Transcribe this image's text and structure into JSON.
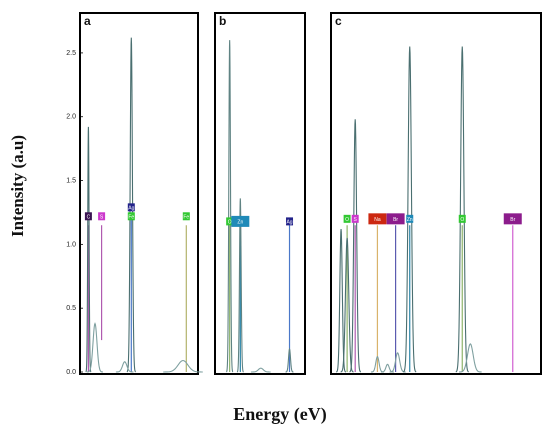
{
  "chart_data": {
    "type": "line",
    "ylabel": "Intensity (a.u)",
    "xlabel": "Energy (eV)",
    "ylim": [
      0,
      2.75
    ],
    "yticks": [
      "0.0",
      "0.5",
      "1.0",
      "1.5",
      "2.0",
      "2.5"
    ],
    "panels": [
      {
        "label": "a",
        "peaks": [
          {
            "x": 0.04,
            "h": 1.92,
            "w": 0.006,
            "color": "#4a6f70"
          },
          {
            "x": 0.1,
            "h": 0.38,
            "w": 0.018,
            "color": "#7fa0a0"
          },
          {
            "x": 0.43,
            "h": 2.62,
            "w": 0.01,
            "color": "#4a6f70"
          },
          {
            "x": 0.37,
            "h": 0.08,
            "w": 0.02,
            "color": "#7fa0a0"
          },
          {
            "x": 0.9,
            "h": 0.09,
            "w": 0.045,
            "color": "#7fa0a0"
          }
        ],
        "markers": [
          {
            "x": 0.04,
            "top": 1.15,
            "bottom": 0.0,
            "color": "#b05bb0"
          },
          {
            "x": 0.16,
            "top": 1.15,
            "bottom": 0.25,
            "color": "#b05bb0"
          },
          {
            "x": 0.43,
            "top": 1.2,
            "bottom": 0.0,
            "color": "#4a78c9"
          },
          {
            "x": 0.93,
            "top": 1.15,
            "bottom": 0.0,
            "color": "#b3b36b"
          }
        ],
        "badges": [
          {
            "x": 0.04,
            "y": 1.22,
            "text": "C",
            "color": "#3a1452",
            "big": false
          },
          {
            "x": 0.16,
            "y": 1.22,
            "text": "S",
            "color": "#cc38cc",
            "big": false
          },
          {
            "x": 0.43,
            "y": 1.29,
            "text": "Ag",
            "color": "#22228a",
            "big": false
          },
          {
            "x": 0.43,
            "y": 1.22,
            "text": "Fe",
            "color": "#32c832",
            "big": false
          },
          {
            "x": 0.93,
            "y": 1.22,
            "text": "Fe",
            "color": "#32c832",
            "big": false
          }
        ]
      },
      {
        "label": "b",
        "peaks": [
          {
            "x": 0.13,
            "h": 2.6,
            "w": 0.01,
            "color": "#5f8383"
          },
          {
            "x": 0.26,
            "h": 1.36,
            "w": 0.01,
            "color": "#5f8383"
          },
          {
            "x": 0.51,
            "h": 0.03,
            "w": 0.03,
            "color": "#7fa0a0"
          },
          {
            "x": 0.86,
            "h": 0.18,
            "w": 0.012,
            "color": "#5f8383"
          }
        ],
        "markers": [
          {
            "x": 0.13,
            "top": 1.15,
            "bottom": 0.0,
            "color": "#8eb36b"
          },
          {
            "x": 0.26,
            "top": 1.1,
            "bottom": 0.0,
            "color": "#2a85a8"
          },
          {
            "x": 0.86,
            "top": 1.15,
            "bottom": 0.0,
            "color": "#4a78c9"
          }
        ],
        "badges": [
          {
            "x": 0.13,
            "y": 1.18,
            "text": "O",
            "color": "#32c832",
            "big": false
          },
          {
            "x": 0.26,
            "y": 1.18,
            "text": "Zn",
            "color": "#1f8ab8",
            "big": true
          },
          {
            "x": 0.86,
            "y": 1.18,
            "text": "Ag",
            "color": "#22228a",
            "big": false
          }
        ]
      },
      {
        "label": "c",
        "peaks": [
          {
            "x": 0.03,
            "h": 1.12,
            "w": 0.006,
            "color": "#4a6f70"
          },
          {
            "x": 0.06,
            "h": 1.05,
            "w": 0.008,
            "color": "#4a6f70"
          },
          {
            "x": 0.1,
            "h": 1.98,
            "w": 0.007,
            "color": "#4a6f70"
          },
          {
            "x": 0.21,
            "h": 0.12,
            "w": 0.008,
            "color": "#7fa0a0"
          },
          {
            "x": 0.26,
            "h": 0.06,
            "w": 0.008,
            "color": "#7fa0a0"
          },
          {
            "x": 0.31,
            "h": 0.15,
            "w": 0.01,
            "color": "#7fa0a0"
          },
          {
            "x": 0.37,
            "h": 2.55,
            "w": 0.008,
            "color": "#4a6f70"
          },
          {
            "x": 0.63,
            "h": 2.55,
            "w": 0.008,
            "color": "#4a6f70"
          },
          {
            "x": 0.67,
            "h": 0.22,
            "w": 0.014,
            "color": "#7fa0a0"
          }
        ],
        "markers": [
          {
            "x": 0.06,
            "top": 1.15,
            "bottom": 0.0,
            "color": "#8eb36b"
          },
          {
            "x": 0.1,
            "top": 1.15,
            "bottom": 0.0,
            "color": "#b05bb0"
          },
          {
            "x": 0.21,
            "top": 1.15,
            "bottom": 0.0,
            "color": "#d9b36b"
          },
          {
            "x": 0.3,
            "top": 1.15,
            "bottom": 0.0,
            "color": "#5b5bb0"
          },
          {
            "x": 0.37,
            "top": 1.15,
            "bottom": 0.0,
            "color": "#2a85a8"
          },
          {
            "x": 0.63,
            "top": 1.15,
            "bottom": 0.0,
            "color": "#8eb36b"
          },
          {
            "x": 0.88,
            "top": 1.15,
            "bottom": 0.0,
            "color": "#d15fd1"
          }
        ],
        "badges": [
          {
            "x": 0.06,
            "y": 1.2,
            "text": "O",
            "color": "#32c832",
            "big": false
          },
          {
            "x": 0.1,
            "y": 1.2,
            "text": "S",
            "color": "#cc38cc",
            "big": false
          },
          {
            "x": 0.21,
            "y": 1.2,
            "text": "Na",
            "color": "#cc2810",
            "big": true
          },
          {
            "x": 0.3,
            "y": 1.2,
            "text": "Br",
            "color": "#8c1c8c",
            "big": true
          },
          {
            "x": 0.37,
            "y": 1.2,
            "text": "Zn",
            "color": "#1f8ab8",
            "big": false
          },
          {
            "x": 0.63,
            "y": 1.2,
            "text": "O",
            "color": "#32c832",
            "big": false
          },
          {
            "x": 0.88,
            "y": 1.2,
            "text": "Br",
            "color": "#8c1c8c",
            "big": true
          }
        ]
      }
    ]
  }
}
